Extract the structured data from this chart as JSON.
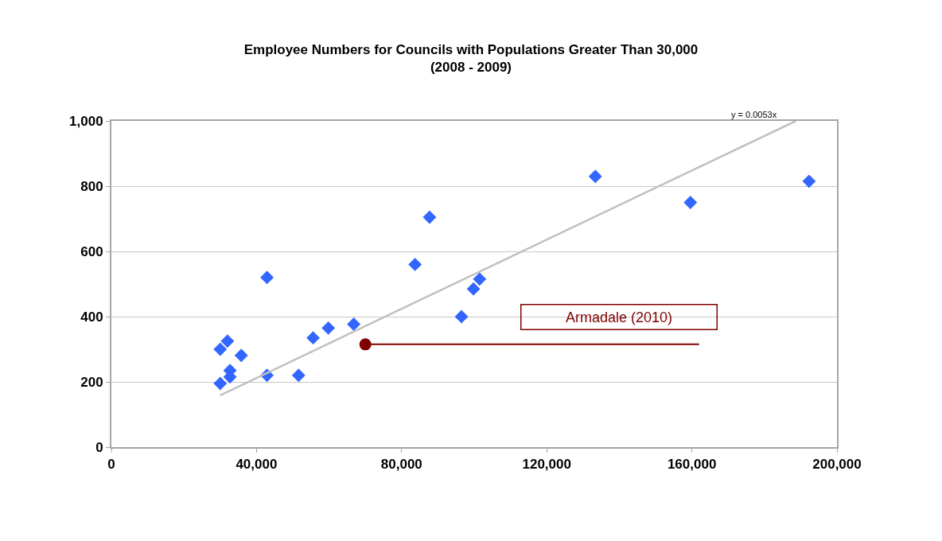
{
  "chart_data": {
    "type": "scatter",
    "title": "Employee Numbers for Councils with Populations Greater Than 30,000\n(2008 - 2009)",
    "xlim": [
      0,
      200000
    ],
    "xticks": [
      {
        "value": 0,
        "label": "0"
      },
      {
        "value": 40000,
        "label": "40,000"
      },
      {
        "value": 80000,
        "label": "80,000"
      },
      {
        "value": 120000,
        "label": "120,000"
      },
      {
        "value": 160000,
        "label": "160,000"
      },
      {
        "value": 200000,
        "label": "200,000"
      }
    ],
    "ylim": [
      0,
      1000
    ],
    "yticks": [
      0,
      200,
      400,
      600,
      800,
      {
        "value": 1000,
        "label": "1,000"
      }
    ],
    "grid": "y",
    "series": [
      {
        "marker": "diamond",
        "color": "#3366ff",
        "x": [
          30000,
          30000,
          32000,
          32700,
          32700,
          35800,
          42900,
          42900,
          51600,
          55600,
          59800,
          66800,
          83700,
          87700,
          96500,
          99800,
          101500,
          133400,
          159600,
          192300
        ],
        "values": [
          300,
          195,
          325,
          235,
          215,
          281,
          520,
          220,
          220,
          335,
          365,
          377,
          560,
          705,
          400,
          485,
          515,
          830,
          750,
          815
        ]
      },
      {
        "type": "line",
        "color": "#c0c0c0",
        "x": [
          30000,
          188679
        ],
        "values": [
          159,
          1000
        ]
      },
      {
        "type": "line",
        "color": "#800000",
        "x": [
          70000,
          162000
        ],
        "values": [
          315,
          315
        ]
      },
      {
        "type": "scatter",
        "marker": "circle",
        "color": "#800000",
        "x": [
          70000
        ],
        "values": [
          315
        ]
      }
    ],
    "annotations": [
      "y = 0.0053x",
      "Armadale (2010)"
    ]
  }
}
